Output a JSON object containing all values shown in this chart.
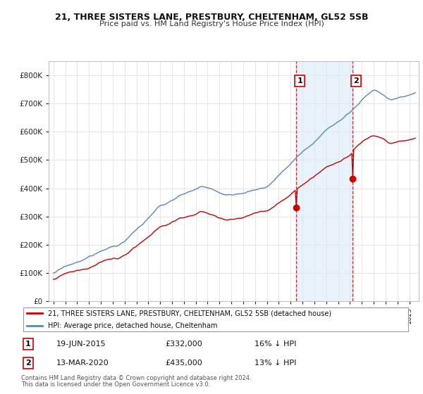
{
  "title_line1": "21, THREE SISTERS LANE, PRESTBURY, CHELTENHAM, GL52 5SB",
  "title_line2": "Price paid vs. HM Land Registry's House Price Index (HPI)",
  "legend_line1": "21, THREE SISTERS LANE, PRESTBURY, CHELTENHAM, GL52 5SB (detached house)",
  "legend_line2": "HPI: Average price, detached house, Cheltenham",
  "transaction1_date": "19-JUN-2015",
  "transaction1_price": "£332,000",
  "transaction1_detail": "16% ↓ HPI",
  "transaction2_date": "13-MAR-2020",
  "transaction2_price": "£435,000",
  "transaction2_detail": "13% ↓ HPI",
  "footer": "Contains HM Land Registry data © Crown copyright and database right 2024.\nThis data is licensed under the Open Government Licence v3.0.",
  "property_color": "#cc0000",
  "hpi_color": "#5588bb",
  "hpi_fill_color": "#daeaf7",
  "vline_color": "#cc0000",
  "grid_color": "#dddddd",
  "t1_price": 332000,
  "t2_price": 435000,
  "t1_year": 2015.47,
  "t2_year": 2020.2,
  "ylim_max": 850000,
  "ylim_min": 0,
  "seed": 17
}
